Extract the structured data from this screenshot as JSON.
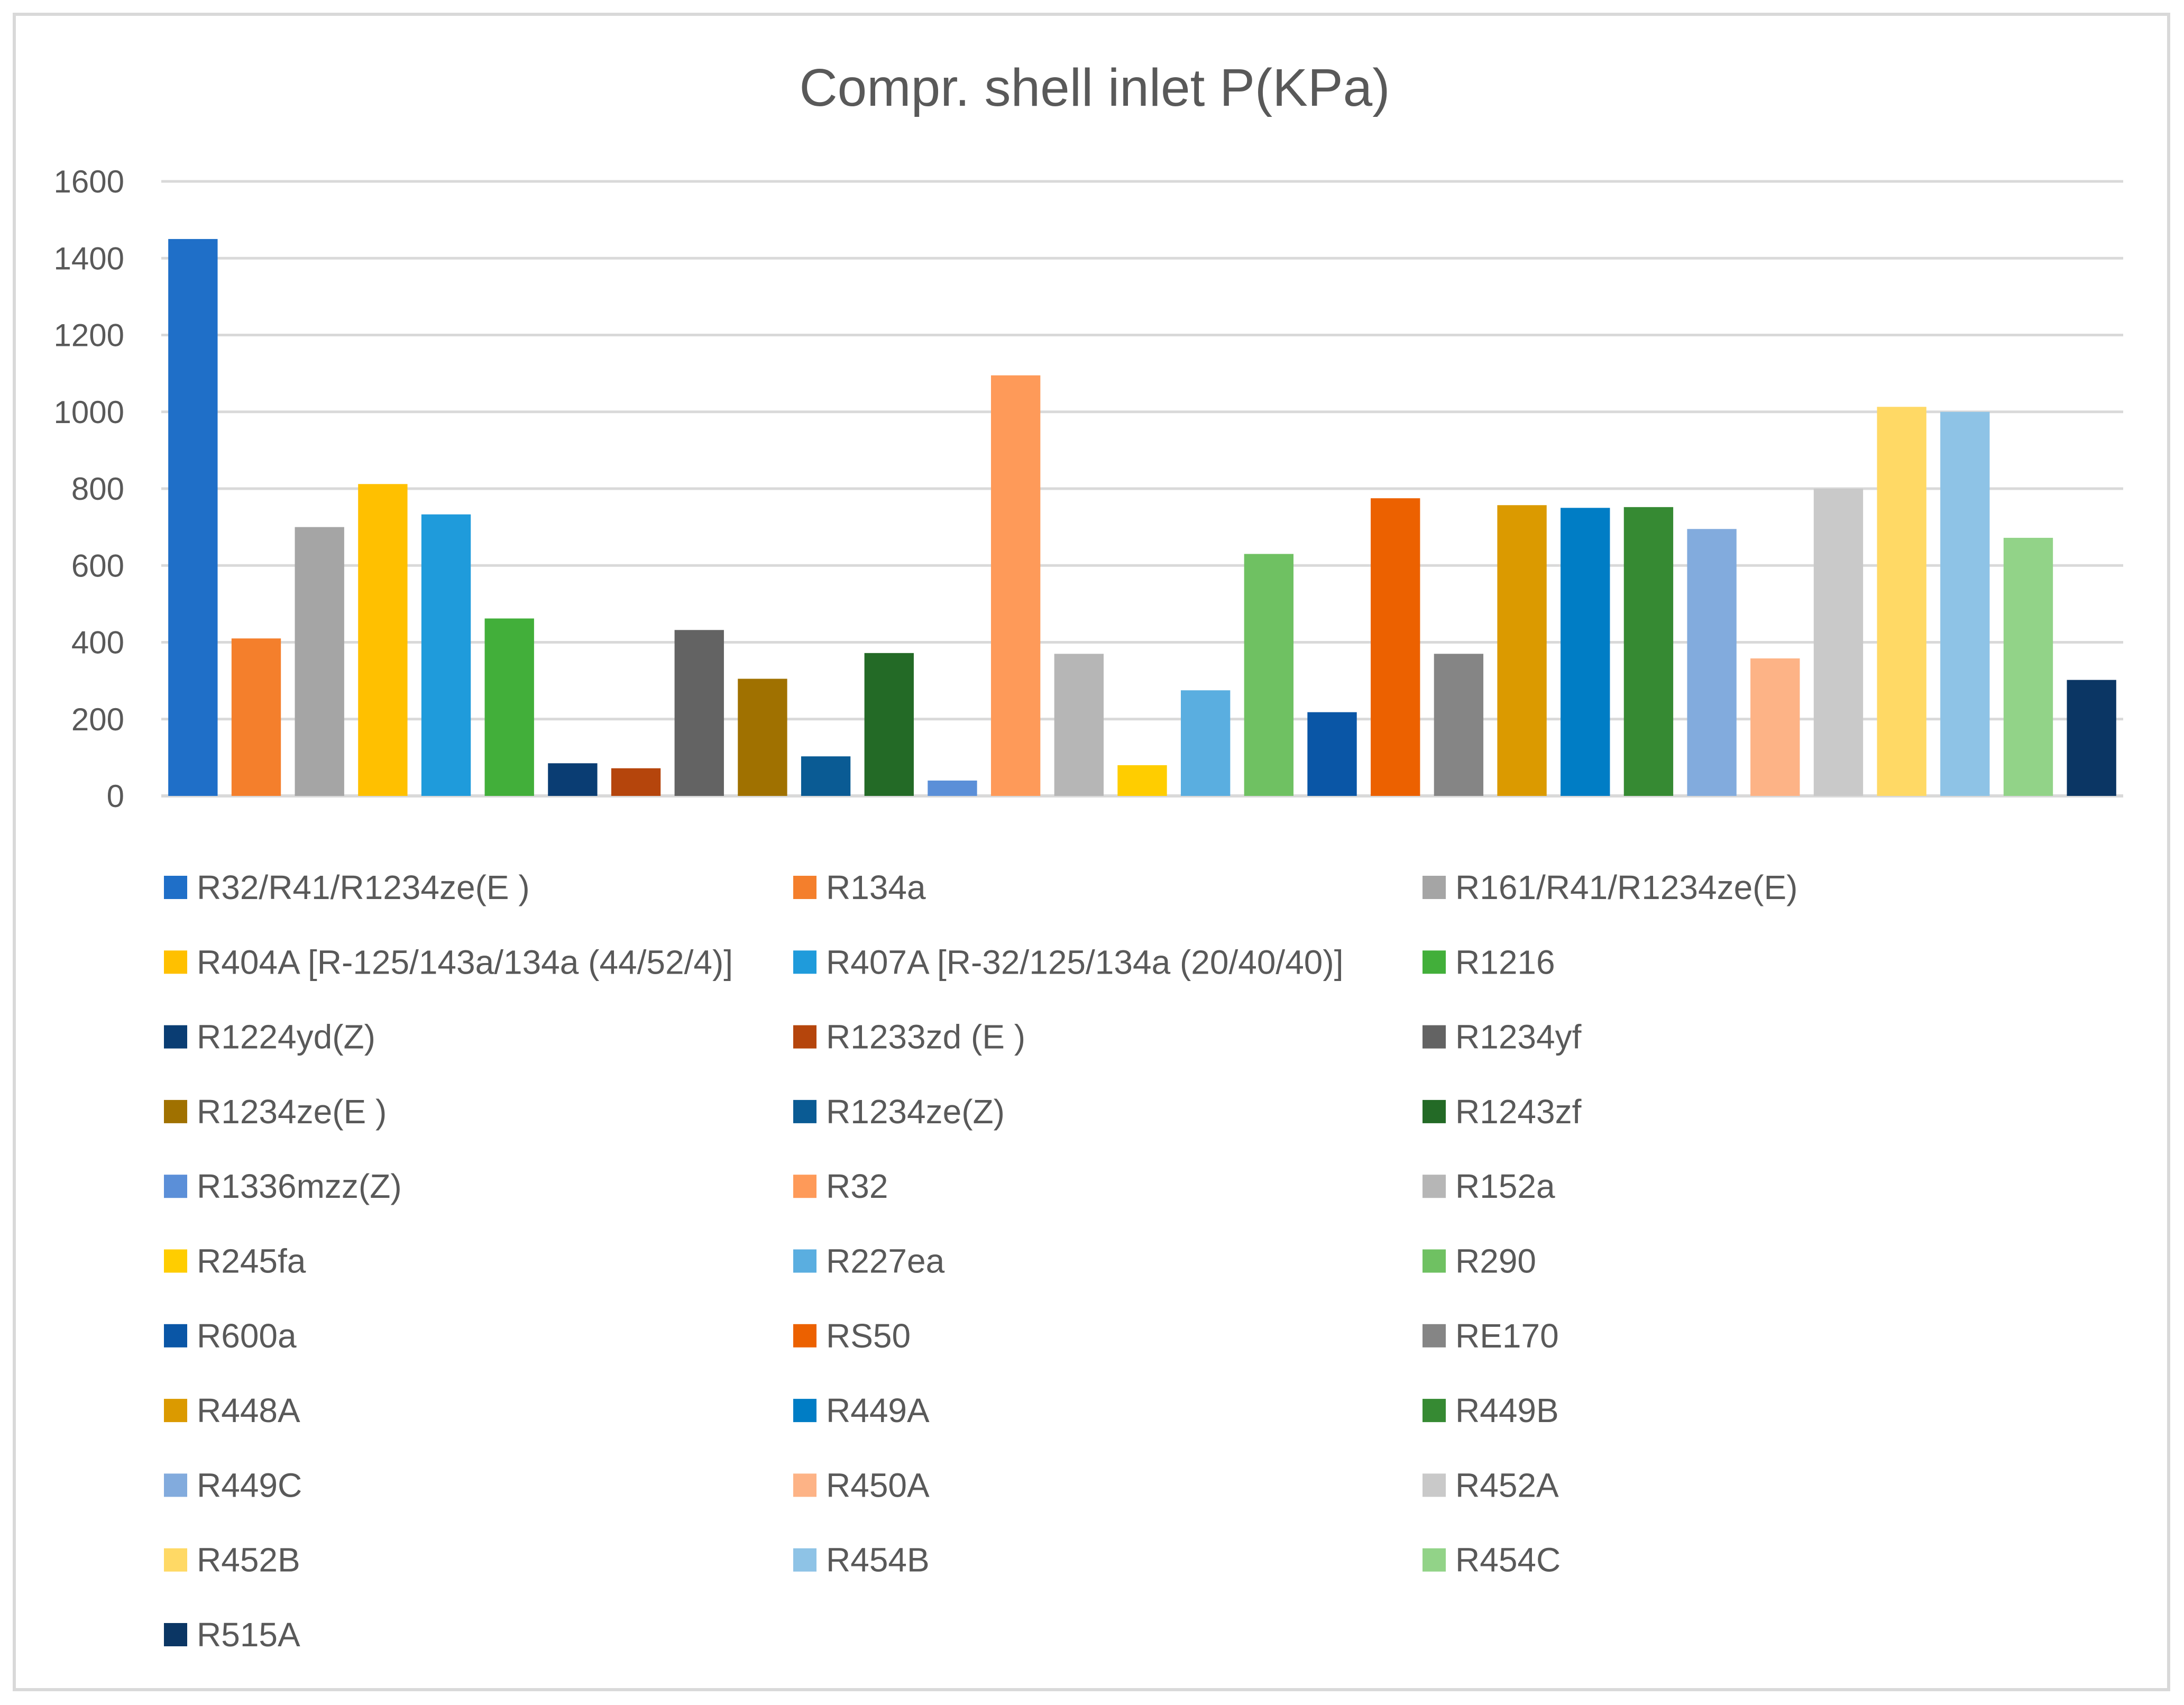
{
  "chart_data": {
    "type": "bar",
    "title": "Compr. shell inlet P(KPa)",
    "xlabel": "",
    "ylabel": "",
    "ylim": [
      0,
      1600
    ],
    "yticks": [
      0,
      200,
      400,
      600,
      800,
      1000,
      1200,
      1400,
      1600
    ],
    "grid": true,
    "legend_position": "bottom",
    "series": [
      {
        "name": "R32/R41/R1234ze(E )",
        "value": 1450,
        "color": "#1f6fc8"
      },
      {
        "name": "R134a",
        "value": 410,
        "color": "#f47f2c"
      },
      {
        "name": "R161/R41/R1234ze(E)",
        "value": 700,
        "color": "#a5a5a5"
      },
      {
        "name": "R404A [R-125/143a/134a (44/52/4)]",
        "value": 812,
        "color": "#ffc000"
      },
      {
        "name": "R407A [R-32/125/134a (20/40/40)]",
        "value": 733,
        "color": "#1f9bdb"
      },
      {
        "name": "R1216",
        "value": 462,
        "color": "#42af3a"
      },
      {
        "name": "R1224yd(Z)",
        "value": 85,
        "color": "#0a3d73"
      },
      {
        "name": "R1233zd (E )",
        "value": 72,
        "color": "#b5450c"
      },
      {
        "name": "R1234yf",
        "value": 432,
        "color": "#636363"
      },
      {
        "name": "R1234ze(E )",
        "value": 305,
        "color": "#a07100"
      },
      {
        "name": "R1234ze(Z)",
        "value": 103,
        "color": "#0a5b94"
      },
      {
        "name": "R1243zf",
        "value": 372,
        "color": "#236a26"
      },
      {
        "name": "R1336mzz(Z)",
        "value": 40,
        "color": "#5b8fd8"
      },
      {
        "name": "R32",
        "value": 1095,
        "color": "#fe9a59"
      },
      {
        "name": "R152a",
        "value": 370,
        "color": "#b6b6b6"
      },
      {
        "name": "R245fa",
        "value": 80,
        "color": "#ffcd00"
      },
      {
        "name": "R227ea",
        "value": 275,
        "color": "#5aaee0"
      },
      {
        "name": "R290",
        "value": 630,
        "color": "#6fc162"
      },
      {
        "name": "R600a",
        "value": 218,
        "color": "#0a56a6"
      },
      {
        "name": "RS50",
        "value": 775,
        "color": "#ec6100"
      },
      {
        "name": "RE170",
        "value": 370,
        "color": "#858585"
      },
      {
        "name": "R448A",
        "value": 757,
        "color": "#db9a00"
      },
      {
        "name": "R449A",
        "value": 750,
        "color": "#007dc5"
      },
      {
        "name": "R449B",
        "value": 752,
        "color": "#368a33"
      },
      {
        "name": "R449C",
        "value": 695,
        "color": "#82abdd"
      },
      {
        "name": "R450A",
        "value": 358,
        "color": "#fdb386"
      },
      {
        "name": "R452A",
        "value": 800,
        "color": "#c9c9c9"
      },
      {
        "name": "R452B",
        "value": 1013,
        "color": "#ffd965"
      },
      {
        "name": "R454B",
        "value": 1000,
        "color": "#8ec3e6"
      },
      {
        "name": "R454C",
        "value": 672,
        "color": "#92d388"
      },
      {
        "name": "R515A",
        "value": 302,
        "color": "#0b3664"
      }
    ]
  }
}
